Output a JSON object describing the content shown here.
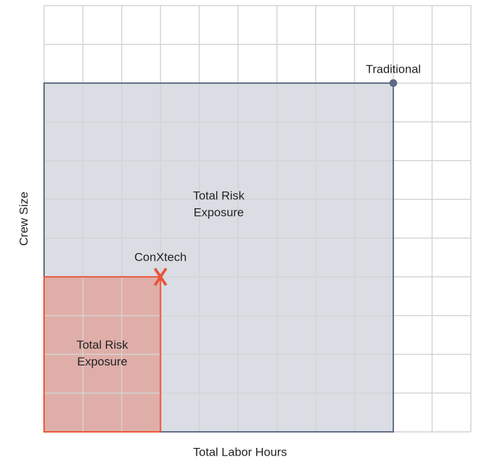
{
  "chart_data": {
    "type": "scatter",
    "xlabel": "Total Labor Hours",
    "ylabel": "Crew Size",
    "xlim": [
      0,
      11
    ],
    "ylim": [
      0,
      11
    ],
    "xticks": [
      0,
      1,
      2,
      3,
      4,
      5,
      6,
      7,
      8,
      9,
      10,
      11
    ],
    "yticks": [
      0,
      1,
      2,
      3,
      4,
      5,
      6,
      7,
      8,
      9,
      10,
      11
    ],
    "grid": true,
    "series": [
      {
        "name": "Traditional",
        "color": "#5f6b85",
        "marker": "circle",
        "x": [
          9
        ],
        "values": [
          9
        ],
        "area_label": [
          "Total Risk",
          "Exposure"
        ]
      },
      {
        "name": "ConXtech",
        "color": "#e8553a",
        "marker": "x",
        "x": [
          3
        ],
        "values": [
          4
        ],
        "area_label": [
          "Total Risk",
          "Exposure"
        ]
      }
    ]
  }
}
